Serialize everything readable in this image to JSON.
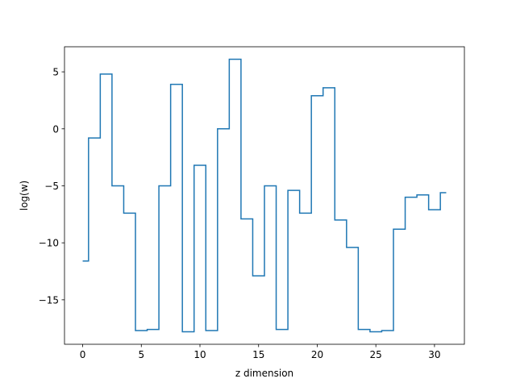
{
  "chart_data": {
    "type": "line",
    "drawstyle": "steps-mid",
    "title": "",
    "xlabel": "z dimension",
    "ylabel": "log(w)",
    "xlim": [
      -1.55,
      32.55
    ],
    "ylim": [
      -18.9,
      7.2
    ],
    "xticks": [
      0,
      5,
      10,
      15,
      20,
      25,
      30
    ],
    "yticks": [
      5,
      0,
      -5,
      -10,
      -15
    ],
    "ytick_labels": [
      "5",
      "0",
      "−5",
      "−10",
      "−15"
    ],
    "grid": false,
    "line_color": "#1f77b4",
    "series": [
      {
        "x": [
          0,
          1,
          2,
          3,
          4,
          5,
          6,
          7,
          8,
          9,
          10,
          11,
          12,
          13,
          14,
          15,
          16,
          17,
          18,
          19,
          20,
          21,
          22,
          23,
          24,
          25,
          26,
          27,
          28,
          29,
          30,
          31
        ],
        "values": [
          -11.6,
          -0.8,
          4.8,
          -5.0,
          -7.4,
          -17.7,
          -17.6,
          -5.0,
          3.9,
          -17.8,
          -3.2,
          -17.7,
          0.0,
          6.1,
          -7.9,
          -12.9,
          -5.0,
          -17.6,
          -5.4,
          -7.4,
          2.9,
          3.6,
          -8.0,
          -10.4,
          -17.6,
          -17.8,
          -17.7,
          -8.8,
          -6.0,
          -5.8,
          -7.1,
          -5.6
        ]
      }
    ]
  }
}
